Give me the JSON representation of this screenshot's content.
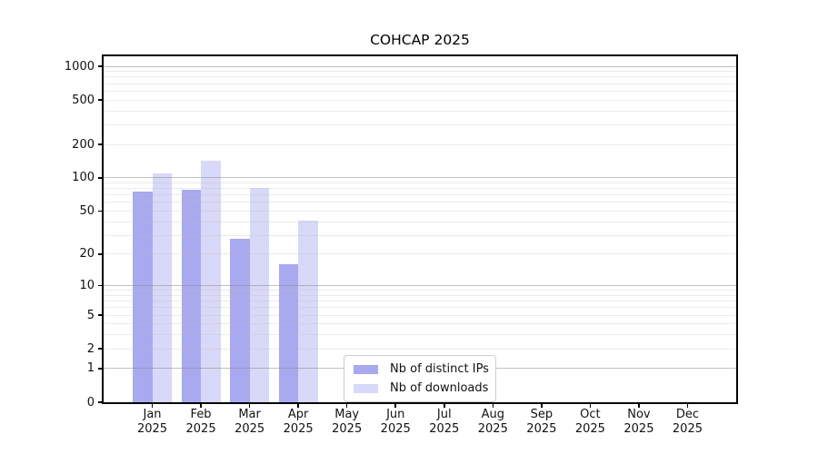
{
  "figure": {
    "title": "COHCAP 2025"
  },
  "chart_data": {
    "type": "bar",
    "title": "COHCAP 2025",
    "categories": [
      "Jan",
      "Feb",
      "Mar",
      "Apr",
      "May",
      "Jun",
      "Jul",
      "Aug",
      "Sep",
      "Oct",
      "Nov",
      "Dec"
    ],
    "x_tick_second_line": "2025",
    "series": [
      {
        "name": "Nb of distinct IPs",
        "color": "#a9a9ef",
        "values": [
          75,
          78,
          28,
          16,
          null,
          null,
          null,
          null,
          null,
          null,
          null,
          null
        ]
      },
      {
        "name": "Nb of downloads",
        "color": "#d8d8f8",
        "values": [
          110,
          144,
          81,
          41,
          null,
          null,
          null,
          null,
          null,
          null,
          null,
          null
        ]
      }
    ],
    "y_ticks": [
      1000,
      500,
      200,
      100,
      50,
      20,
      10,
      5,
      2,
      1,
      0
    ],
    "y_scale": "log10(1+value)",
    "ylim": [
      0,
      1300
    ],
    "grid": "horizontal major+minor, drawn over bars",
    "grid_major": [
      1,
      10,
      100,
      1000
    ],
    "grid_minor": [
      2,
      3,
      4,
      5,
      6,
      7,
      8,
      9,
      20,
      30,
      40,
      50,
      60,
      70,
      80,
      90,
      200,
      300,
      400,
      500,
      600,
      700,
      800,
      900
    ],
    "legend_position": "inside lower center",
    "colors": {
      "grid_major": "rgba(140,140,140,0.55)",
      "grid_minor": "rgba(190,190,190,0.30)",
      "axis": "#000000",
      "text": "#111111"
    }
  }
}
